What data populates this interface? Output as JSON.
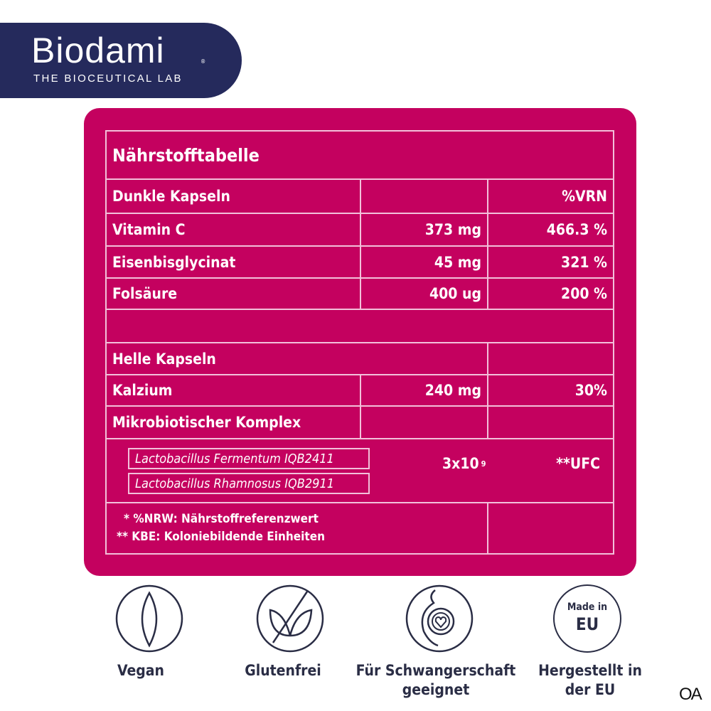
{
  "logo": {
    "brand": "Biodami",
    "registered": "®",
    "tagline": "THE BIOCEUTICAL LAB"
  },
  "table": {
    "title": "Nährstofftabelle",
    "dark": {
      "label": "Dunkle Kapseln",
      "vrn_header": "%VRN",
      "rows": [
        {
          "name": "Vitamin C",
          "amount": "373 mg",
          "vrn": "466.3 %"
        },
        {
          "name": "Eisenbisglycinat",
          "amount": "45 mg",
          "vrn": "321 %"
        },
        {
          "name": "Folsäure",
          "amount": "400 ug",
          "vrn": "200 %"
        }
      ]
    },
    "light": {
      "label": "Helle Kapseln",
      "rows": [
        {
          "name": "Kalzium",
          "amount": "240 mg",
          "vrn": "30%"
        }
      ],
      "complex": {
        "label": "Mikrobiotischer Komplex",
        "strains": [
          "Lactobacillus Fermentum IQB2411",
          "Lactobacillus Rhamnosus IQB2911"
        ],
        "amount_base": "3x10",
        "amount_exp": "9",
        "unit": "**UFC"
      }
    },
    "footnotes": [
      "* %NRW: Nährstoffreferenzwert",
      "** KBE: Koloniebildende Einheiten"
    ]
  },
  "badges": [
    {
      "icon": "leaf-icon",
      "label": "Vegan"
    },
    {
      "icon": "gluten-free-icon",
      "label": "Glutenfrei"
    },
    {
      "icon": "pregnancy-icon",
      "label": "Für Schwangerschaft geeignet"
    },
    {
      "icon": "made-in-eu-icon",
      "label": "Hergestellt in der EU",
      "icon_text": "Made in",
      "icon_text2": "EU"
    }
  ],
  "corner_mark": "OA",
  "colors": {
    "magenta": "#c4015f",
    "navy": "#252a5c",
    "line": "#f2c0da",
    "text_dark": "#2a2d45"
  }
}
